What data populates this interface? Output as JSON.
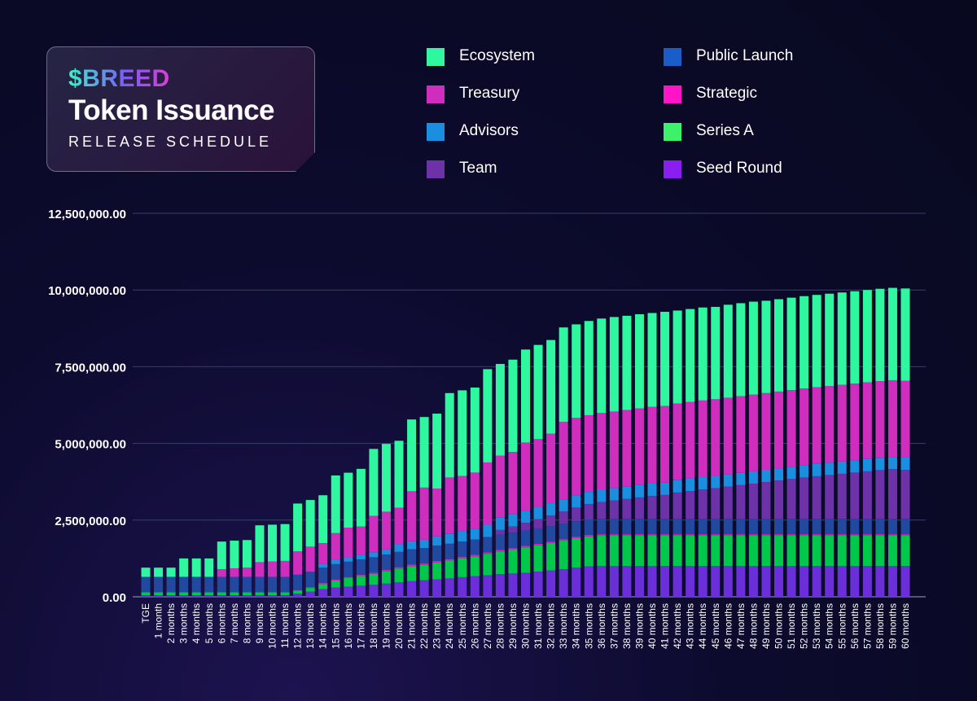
{
  "header": {
    "brand": "$BREED",
    "title": "Token Issuance",
    "subtitle": "RELEASE SCHEDULE"
  },
  "chart_data": {
    "type": "bar",
    "stacked": true,
    "title": "Token Issuance",
    "subtitle": "RELEASE SCHEDULE",
    "xlabel": "",
    "ylabel": "",
    "ylim": [
      0,
      12500000
    ],
    "y_ticks": [
      0,
      2500000,
      5000000,
      7500000,
      10000000,
      12500000
    ],
    "y_tick_labels": [
      "0.00",
      "2,500,000.00",
      "5,000,000.00",
      "7,500,000.00",
      "10,000,000.00",
      "12,500,000.00"
    ],
    "grid": true,
    "legend_position": "top-right",
    "categories": [
      "TGE",
      "1 month",
      "2 months",
      "3 months",
      "4 months",
      "5 months",
      "6 months",
      "7 months",
      "8 months",
      "9 months",
      "10 months",
      "11 months",
      "12 months",
      "13 months",
      "14 months",
      "15 months",
      "16 months",
      "17 months",
      "18 months",
      "19 months",
      "20 months",
      "21 months",
      "22 months",
      "23 months",
      "24 months",
      "25 months",
      "26 months",
      "27 months",
      "28 months",
      "29 months",
      "30 months",
      "31 months",
      "32 months",
      "33 months",
      "34 months",
      "35 months",
      "36 months",
      "37 months",
      "38 months",
      "39 months",
      "40 months",
      "41 months",
      "42 months",
      "43 months",
      "44 months",
      "45 months",
      "46 months",
      "47 months",
      "48 months",
      "49 months",
      "50 months",
      "51 months",
      "52 months",
      "53 months",
      "54 months",
      "55 months",
      "56 months",
      "57 months",
      "58 months",
      "59 months",
      "60 months"
    ],
    "series": [
      {
        "name": "Seed Round",
        "color": "#6a2fd8",
        "values": [
          50000,
          50000,
          50000,
          50000,
          50000,
          50000,
          50000,
          50000,
          50000,
          50000,
          50000,
          50000,
          100000,
          170000,
          250000,
          300000,
          330000,
          360000,
          390000,
          430000,
          470000,
          510000,
          540000,
          570000,
          600000,
          640000,
          670000,
          700000,
          740000,
          760000,
          780000,
          820000,
          860000,
          900000,
          950000,
          990000,
          1000000,
          1000000,
          1000000,
          1000000,
          1000000,
          1000000,
          1000000,
          1000000,
          1000000,
          1000000,
          1000000,
          1000000,
          1000000,
          1000000,
          1000000,
          1000000,
          1000000,
          1000000,
          1000000,
          1000000,
          1000000,
          1000000,
          1000000,
          1000000,
          1000000
        ]
      },
      {
        "name": "Series A",
        "color": "#00c84a",
        "values": [
          100000,
          100000,
          100000,
          100000,
          100000,
          100000,
          100000,
          100000,
          100000,
          100000,
          100000,
          100000,
          100000,
          120000,
          170000,
          230000,
          280000,
          320000,
          360000,
          400000,
          450000,
          490000,
          500000,
          550000,
          580000,
          610000,
          650000,
          700000,
          740000,
          780000,
          830000,
          860000,
          890000,
          930000,
          960000,
          980000,
          990000,
          990000,
          990000,
          990000,
          990000,
          990000,
          990000,
          990000,
          990000,
          990000,
          990000,
          990000,
          990000,
          990000,
          990000,
          990000,
          990000,
          990000,
          990000,
          990000,
          990000,
          990000,
          990000,
          990000,
          990000
        ]
      },
      {
        "name": "Strategic",
        "color": "#e01fc0",
        "values": [
          0,
          0,
          0,
          0,
          0,
          0,
          0,
          0,
          0,
          0,
          0,
          0,
          20000,
          25000,
          30000,
          35000,
          35000,
          40000,
          40000,
          45000,
          45000,
          50000,
          50000,
          50000,
          50000,
          50000,
          50000,
          50000,
          50000,
          50000,
          50000,
          50000,
          50000,
          50000,
          50000,
          50000,
          50000,
          50000,
          50000,
          50000,
          50000,
          50000,
          50000,
          50000,
          50000,
          50000,
          50000,
          50000,
          50000,
          50000,
          50000,
          50000,
          50000,
          50000,
          50000,
          50000,
          50000,
          50000,
          50000,
          50000,
          50000
        ]
      },
      {
        "name": "Public Launch",
        "color": "#2249a0",
        "values": [
          500000,
          500000,
          500000,
          500000,
          500000,
          500000,
          500000,
          500000,
          500000,
          500000,
          500000,
          500000,
          500000,
          500000,
          500000,
          500000,
          500000,
          500000,
          500000,
          500000,
          500000,
          500000,
          500000,
          500000,
          500000,
          500000,
          500000,
          500000,
          500000,
          500000,
          500000,
          500000,
          500000,
          500000,
          500000,
          500000,
          500000,
          500000,
          500000,
          500000,
          500000,
          500000,
          500000,
          500000,
          500000,
          500000,
          500000,
          500000,
          500000,
          500000,
          500000,
          500000,
          500000,
          500000,
          500000,
          500000,
          500000,
          500000,
          500000,
          500000,
          500000
        ]
      },
      {
        "name": "Team",
        "color": "#6d32a8",
        "values": [
          0,
          0,
          0,
          0,
          0,
          0,
          0,
          0,
          0,
          0,
          0,
          0,
          0,
          0,
          0,
          0,
          0,
          0,
          0,
          0,
          0,
          0,
          0,
          0,
          0,
          0,
          0,
          0,
          150000,
          200000,
          250000,
          300000,
          350000,
          400000,
          450000,
          500000,
          550000,
          600000,
          650000,
          700000,
          750000,
          780000,
          860000,
          910000,
          960000,
          1000000,
          1050000,
          1100000,
          1150000,
          1200000,
          1250000,
          1300000,
          1350000,
          1390000,
          1430000,
          1470000,
          1510000,
          1550000,
          1590000,
          1620000,
          1600000
        ]
      },
      {
        "name": "Advisors",
        "color": "#1a8fe0",
        "values": [
          0,
          0,
          0,
          0,
          0,
          0,
          0,
          0,
          0,
          0,
          0,
          0,
          0,
          0,
          120000,
          130000,
          140000,
          150000,
          160000,
          170000,
          250000,
          260000,
          270000,
          300000,
          320000,
          340000,
          350000,
          400000,
          400000,
          400000,
          400000,
          400000,
          400000,
          400000,
          400000,
          400000,
          400000,
          400000,
          400000,
          400000,
          400000,
          400000,
          400000,
          400000,
          400000,
          400000,
          400000,
          400000,
          400000,
          400000,
          400000,
          400000,
          400000,
          400000,
          400000,
          400000,
          400000,
          400000,
          400000,
          400000,
          400000
        ]
      },
      {
        "name": "Treasury",
        "color": "#cf2dbe",
        "values": [
          0,
          0,
          0,
          0,
          0,
          0,
          250000,
          280000,
          300000,
          480000,
          500000,
          520000,
          760000,
          820000,
          680000,
          880000,
          970000,
          920000,
          1190000,
          1230000,
          1190000,
          1630000,
          1700000,
          1560000,
          1840000,
          1800000,
          1830000,
          2030000,
          2020000,
          2030000,
          2220000,
          2210000,
          2270000,
          2520000,
          2520000,
          2500000,
          2500000,
          2500000,
          2500000,
          2500000,
          2500000,
          2500000,
          2500000,
          2500000,
          2500000,
          2500000,
          2500000,
          2500000,
          2500000,
          2500000,
          2500000,
          2500000,
          2500000,
          2500000,
          2500000,
          2500000,
          2500000,
          2500000,
          2500000,
          2500000,
          2500000
        ]
      },
      {
        "name": "Ecosystem",
        "color": "#2ef7a0",
        "values": [
          300000,
          300000,
          300000,
          600000,
          600000,
          600000,
          900000,
          900000,
          900000,
          1200000,
          1200000,
          1200000,
          1560000,
          1520000,
          1560000,
          1880000,
          1790000,
          1880000,
          2180000,
          2210000,
          2180000,
          2340000,
          2300000,
          2440000,
          2750000,
          2790000,
          2770000,
          3040000,
          2990000,
          3010000,
          3030000,
          3070000,
          3050000,
          3080000,
          3050000,
          3070000,
          3080000,
          3080000,
          3070000,
          3070000,
          3060000,
          3070000,
          3030000,
          3030000,
          3030000,
          3010000,
          3030000,
          3030000,
          3030000,
          3010000,
          3010000,
          3010000,
          3010000,
          3010000,
          3010000,
          3010000,
          3010000,
          3010000,
          3010000,
          3010000,
          3010000
        ]
      }
    ]
  }
}
